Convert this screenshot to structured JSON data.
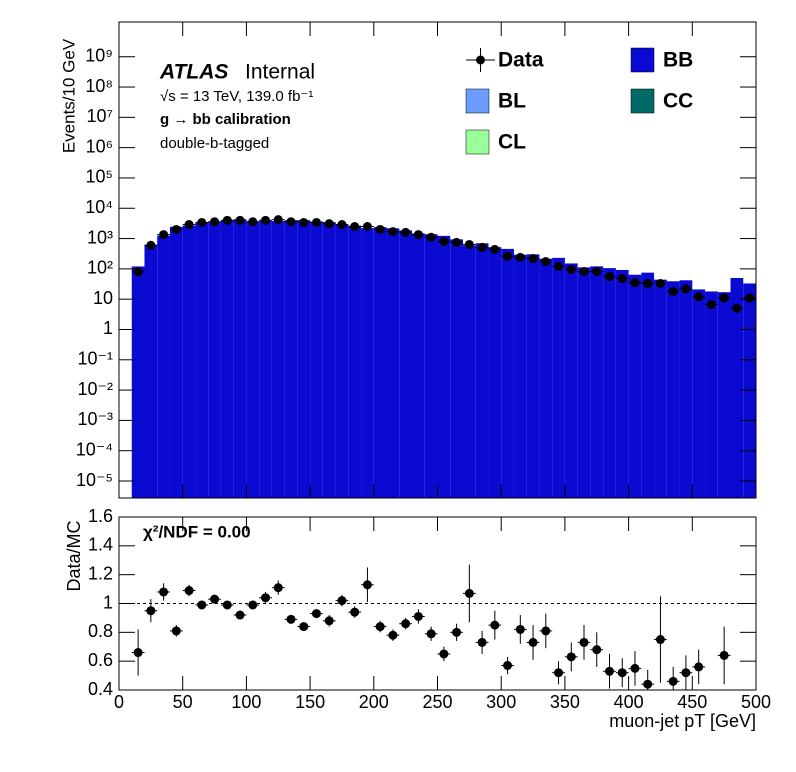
{
  "chart_data": [
    {
      "type": "histogram",
      "y_label": "Events/10 GeV",
      "experiment": "ATLAS",
      "status": "Internal",
      "energy_label": "√s = 13 TeV, 139.0 fb⁻¹",
      "process_label": "g → bb calibration",
      "selection_label": "double-b-tagged",
      "bins": [
        10,
        20,
        30,
        40,
        50,
        60,
        70,
        80,
        90,
        100,
        110,
        120,
        130,
        140,
        150,
        160,
        170,
        180,
        190,
        200,
        210,
        220,
        230,
        240,
        250,
        260,
        270,
        280,
        290,
        300,
        310,
        320,
        330,
        340,
        350,
        360,
        370,
        380,
        390,
        400,
        410,
        420,
        430,
        440,
        450,
        460,
        470,
        480,
        490,
        500
      ],
      "series": [
        {
          "name": "Data",
          "color": "#000000",
          "values": [
            80,
            600,
            1350,
            2000,
            2900,
            3400,
            3600,
            4000,
            4000,
            3600,
            4000,
            4200,
            3600,
            3400,
            3400,
            3100,
            2900,
            2500,
            2500,
            2000,
            1700,
            1600,
            1350,
            1100,
            800,
            750,
            640,
            510,
            440,
            260,
            240,
            220,
            175,
            120,
            95,
            82,
            82,
            56,
            48,
            35,
            33,
            33,
            18,
            22,
            12,
            6.7,
            11,
            5,
            11
          ]
        },
        {
          "name": "BB",
          "color": "#0a0ad2",
          "values": [
            120,
            630,
            1250,
            2450,
            2660,
            3430,
            3500,
            4040,
            4350,
            3640,
            3850,
            3780,
            4040,
            4050,
            3660,
            3520,
            2840,
            2660,
            2210,
            2380,
            2180,
            1860,
            1480,
            1390,
            1230,
            940,
            600,
            700,
            520,
            456,
            293,
            301,
            216,
            231,
            151,
            112,
            121,
            106,
            92,
            64,
            75,
            44,
            39,
            42,
            21,
            18,
            17,
            50,
            33
          ]
        },
        {
          "name": "BL",
          "color": "#6a9dff"
        },
        {
          "name": "CC",
          "color": "#006a66"
        },
        {
          "name": "CL",
          "color": "#99ff99"
        }
      ],
      "log_y": true,
      "xlim": [
        0,
        500
      ],
      "xticks": [
        0,
        50,
        100,
        150,
        200,
        250,
        300,
        350,
        400,
        450,
        500
      ],
      "ylim": [
        2.75e-06,
        14000000000.0
      ],
      "yticks": [
        {
          "value": 1e-05,
          "label": "10⁻⁵"
        },
        {
          "value": 0.0001,
          "label": "10⁻⁴"
        },
        {
          "value": 0.001,
          "label": "10⁻³"
        },
        {
          "value": 0.01,
          "label": "10⁻²"
        },
        {
          "value": 0.1,
          "label": "10⁻¹"
        },
        1,
        10,
        {
          "value": 100,
          "label": "10²"
        },
        {
          "value": 1000,
          "label": "10³"
        },
        {
          "value": 10000,
          "label": "10⁴"
        },
        {
          "value": 100000,
          "label": "10⁵"
        },
        {
          "value": 1000000,
          "label": "10⁶"
        },
        {
          "value": 10000000,
          "label": "10⁷"
        },
        {
          "value": 100000000,
          "label": "10⁸"
        },
        {
          "value": 1000000000,
          "label": "10⁹"
        }
      ]
    },
    {
      "type": "scatter",
      "y_label": "Data/MC",
      "x_label": "muon-jet pT [GeV]",
      "annotation": "χ²/NDF = 0.00",
      "bins": [
        10,
        20,
        30,
        40,
        50,
        60,
        70,
        80,
        90,
        100,
        110,
        120,
        130,
        140,
        150,
        160,
        170,
        180,
        190,
        200,
        210,
        220,
        230,
        240,
        250,
        260,
        270,
        280,
        290,
        300,
        310,
        320,
        330,
        340,
        350,
        360,
        370,
        380,
        390,
        400,
        410,
        420,
        430,
        440,
        450,
        460,
        470,
        480,
        490,
        500
      ],
      "values": [
        0.66,
        0.95,
        1.08,
        0.81,
        1.09,
        0.99,
        1.03,
        0.99,
        0.92,
        0.99,
        1.04,
        1.11,
        0.89,
        0.84,
        0.93,
        0.88,
        1.02,
        0.94,
        1.13,
        0.84,
        0.78,
        0.86,
        0.91,
        0.79,
        0.65,
        0.8,
        1.07,
        0.73,
        0.85,
        0.57,
        0.82,
        0.73,
        0.81,
        0.52,
        0.63,
        0.73,
        0.68,
        0.53,
        0.52,
        0.55,
        0.44,
        0.75,
        0.46,
        0.52,
        0.56,
        null,
        0.64,
        null,
        null
      ],
      "errors": [
        0.16,
        0.08,
        0.06,
        0.04,
        0.04,
        0.03,
        0.03,
        0.03,
        0.03,
        0.03,
        0.04,
        0.05,
        0.03,
        0.03,
        0.03,
        0.04,
        0.04,
        0.04,
        0.12,
        0.04,
        0.04,
        0.04,
        0.05,
        0.05,
        0.05,
        0.06,
        0.2,
        0.08,
        0.1,
        0.06,
        0.1,
        0.12,
        0.12,
        0.08,
        0.1,
        0.12,
        0.12,
        0.12,
        0.1,
        0.12,
        0.1,
        0.3,
        0.1,
        0.12,
        0.12,
        null,
        0.2,
        null,
        null
      ],
      "color": "#000000",
      "reference_line": 1,
      "xlim": [
        0,
        500
      ],
      "xticks": [
        0,
        50,
        100,
        150,
        200,
        250,
        300,
        350,
        400,
        450,
        500
      ],
      "ylim": [
        0.4,
        1.6
      ],
      "yticks": [
        0.4,
        0.6,
        0.8,
        1,
        1.2,
        1.4,
        1.6
      ]
    }
  ]
}
